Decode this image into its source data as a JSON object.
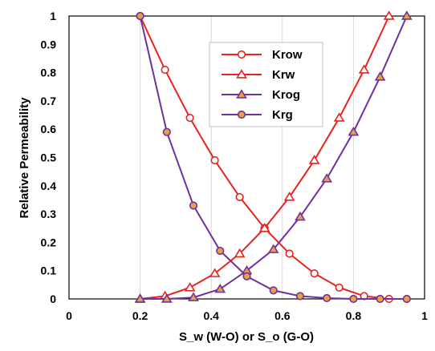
{
  "chart_data": {
    "type": "line",
    "xlabel": "S_w (W-O) or S_o (G-O)",
    "ylabel": "Relative Permeability",
    "xlim": [
      0,
      1
    ],
    "ylim": [
      0,
      1
    ],
    "x_ticks": [
      "0",
      "0.2",
      "0.4",
      "0.6",
      "0.8",
      "1"
    ],
    "y_ticks": [
      "0",
      "0.1",
      "0.2",
      "0.3",
      "0.4",
      "0.5",
      "0.6",
      "0.7",
      "0.8",
      "0.9",
      "1"
    ],
    "grid": "vertical",
    "legend_position": "top-center",
    "series": [
      {
        "name": "Krow",
        "line_color": "#e8221d",
        "marker": "circle",
        "marker_fill": "#ffffff",
        "marker_stroke": "#e8221d",
        "x": [
          0.2,
          0.27,
          0.34,
          0.41,
          0.48,
          0.55,
          0.62,
          0.69,
          0.76,
          0.83,
          0.9
        ],
        "y": [
          1.0,
          0.81,
          0.64,
          0.49,
          0.36,
          0.25,
          0.16,
          0.09,
          0.04,
          0.01,
          0.0
        ]
      },
      {
        "name": "Krw",
        "line_color": "#e8221d",
        "marker": "triangle",
        "marker_fill": "#ffffff",
        "marker_stroke": "#e8221d",
        "x": [
          0.2,
          0.27,
          0.34,
          0.41,
          0.48,
          0.55,
          0.62,
          0.69,
          0.76,
          0.83,
          0.9
        ],
        "y": [
          0.0,
          0.01,
          0.04,
          0.09,
          0.16,
          0.25,
          0.36,
          0.49,
          0.64,
          0.81,
          1.0
        ]
      },
      {
        "name": "Krog",
        "line_color": "#7030a0",
        "marker": "triangle",
        "marker_fill": "#e6a23c",
        "marker_stroke": "#7030a0",
        "x": [
          0.2,
          0.275,
          0.35,
          0.425,
          0.5,
          0.575,
          0.65,
          0.725,
          0.8,
          0.875,
          0.95
        ],
        "y": [
          0.0,
          0.0,
          0.005,
          0.035,
          0.1,
          0.175,
          0.29,
          0.425,
          0.59,
          0.785,
          1.0
        ]
      },
      {
        "name": "Krg",
        "line_color": "#7030a0",
        "marker": "circle",
        "marker_fill": "#e6a23c",
        "marker_stroke": "#7030a0",
        "x": [
          0.2,
          0.275,
          0.35,
          0.425,
          0.5,
          0.575,
          0.65,
          0.725,
          0.8,
          0.875,
          0.95
        ],
        "y": [
          1.0,
          0.59,
          0.33,
          0.17,
          0.08,
          0.03,
          0.01,
          0.003,
          0.0,
          0.0,
          0.0
        ]
      }
    ]
  }
}
